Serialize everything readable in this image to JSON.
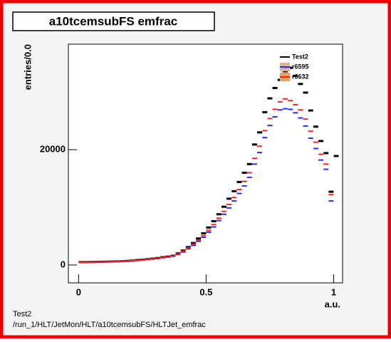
{
  "chart_data": {
    "type": "scatter",
    "title": "a10tcemsubFS emfrac",
    "x_label": "a.u.",
    "y_label": "entries/0.0",
    "footer": [
      "Test2",
      "/run_1/HLT/JetMon/HLT/a10tcemsubFS/HLTJet_emfrac"
    ],
    "x": [
      0.01,
      0.03,
      0.05,
      0.07,
      0.09,
      0.11,
      0.13,
      0.15,
      0.17,
      0.19,
      0.21,
      0.23,
      0.25,
      0.27,
      0.29,
      0.31,
      0.33,
      0.35,
      0.37,
      0.39,
      0.41,
      0.43,
      0.45,
      0.47,
      0.49,
      0.51,
      0.53,
      0.55,
      0.57,
      0.59,
      0.61,
      0.63,
      0.65,
      0.67,
      0.69,
      0.71,
      0.73,
      0.75,
      0.77,
      0.79,
      0.81,
      0.83,
      0.85,
      0.87,
      0.89,
      0.91,
      0.93,
      0.95,
      0.97,
      0.99,
      1.01
    ],
    "series": [
      {
        "name": "Test2",
        "color": "#000000",
        "values": [
          500,
          500,
          520,
          540,
          560,
          580,
          600,
          620,
          650,
          700,
          760,
          850,
          900,
          1000,
          1100,
          1200,
          1350,
          1450,
          1600,
          2000,
          2500,
          3100,
          3800,
          4600,
          5500,
          6500,
          7600,
          8800,
          10100,
          11500,
          12800,
          14400,
          16000,
          17500,
          20900,
          23000,
          26500,
          28900,
          30700,
          32100,
          33600,
          34200,
          32800,
          31400,
          29900,
          26800,
          24000,
          21500,
          19400,
          12700,
          18900
        ]
      },
      {
        "name": "r6595",
        "color": "#2b2bff",
        "fill": "#d8b890",
        "values": [
          470,
          480,
          490,
          510,
          530,
          550,
          570,
          590,
          620,
          660,
          720,
          780,
          840,
          920,
          1010,
          1100,
          1250,
          1350,
          1500,
          1800,
          2250,
          2800,
          3400,
          4100,
          4800,
          5700,
          6600,
          7700,
          8800,
          9900,
          11100,
          12400,
          13700,
          15200,
          17500,
          19500,
          22100,
          24200,
          25700,
          26900,
          27100,
          27000,
          26400,
          25500,
          24100,
          22000,
          20200,
          18200,
          16600,
          11100,
          null
        ]
      },
      {
        "name": "r6632",
        "color": "#ff2020",
        "fill": "#f0a060",
        "values": [
          480,
          490,
          500,
          520,
          540,
          560,
          580,
          600,
          640,
          680,
          740,
          800,
          860,
          950,
          1050,
          1150,
          1300,
          1400,
          1550,
          1900,
          2400,
          2950,
          3600,
          4300,
          5100,
          6000,
          7000,
          8100,
          9300,
          10500,
          11700,
          13100,
          14500,
          16000,
          18500,
          20600,
          23300,
          25400,
          27000,
          28300,
          28800,
          28500,
          27800,
          26900,
          25300,
          23200,
          21300,
          19200,
          17500,
          12200,
          null
        ]
      }
    ],
    "xlim": [
      -0.04,
      1.035
    ],
    "ylim": [
      -3100,
      38300
    ],
    "xticks": [
      0,
      0.5,
      1
    ],
    "yticks": [
      0,
      20000
    ]
  }
}
